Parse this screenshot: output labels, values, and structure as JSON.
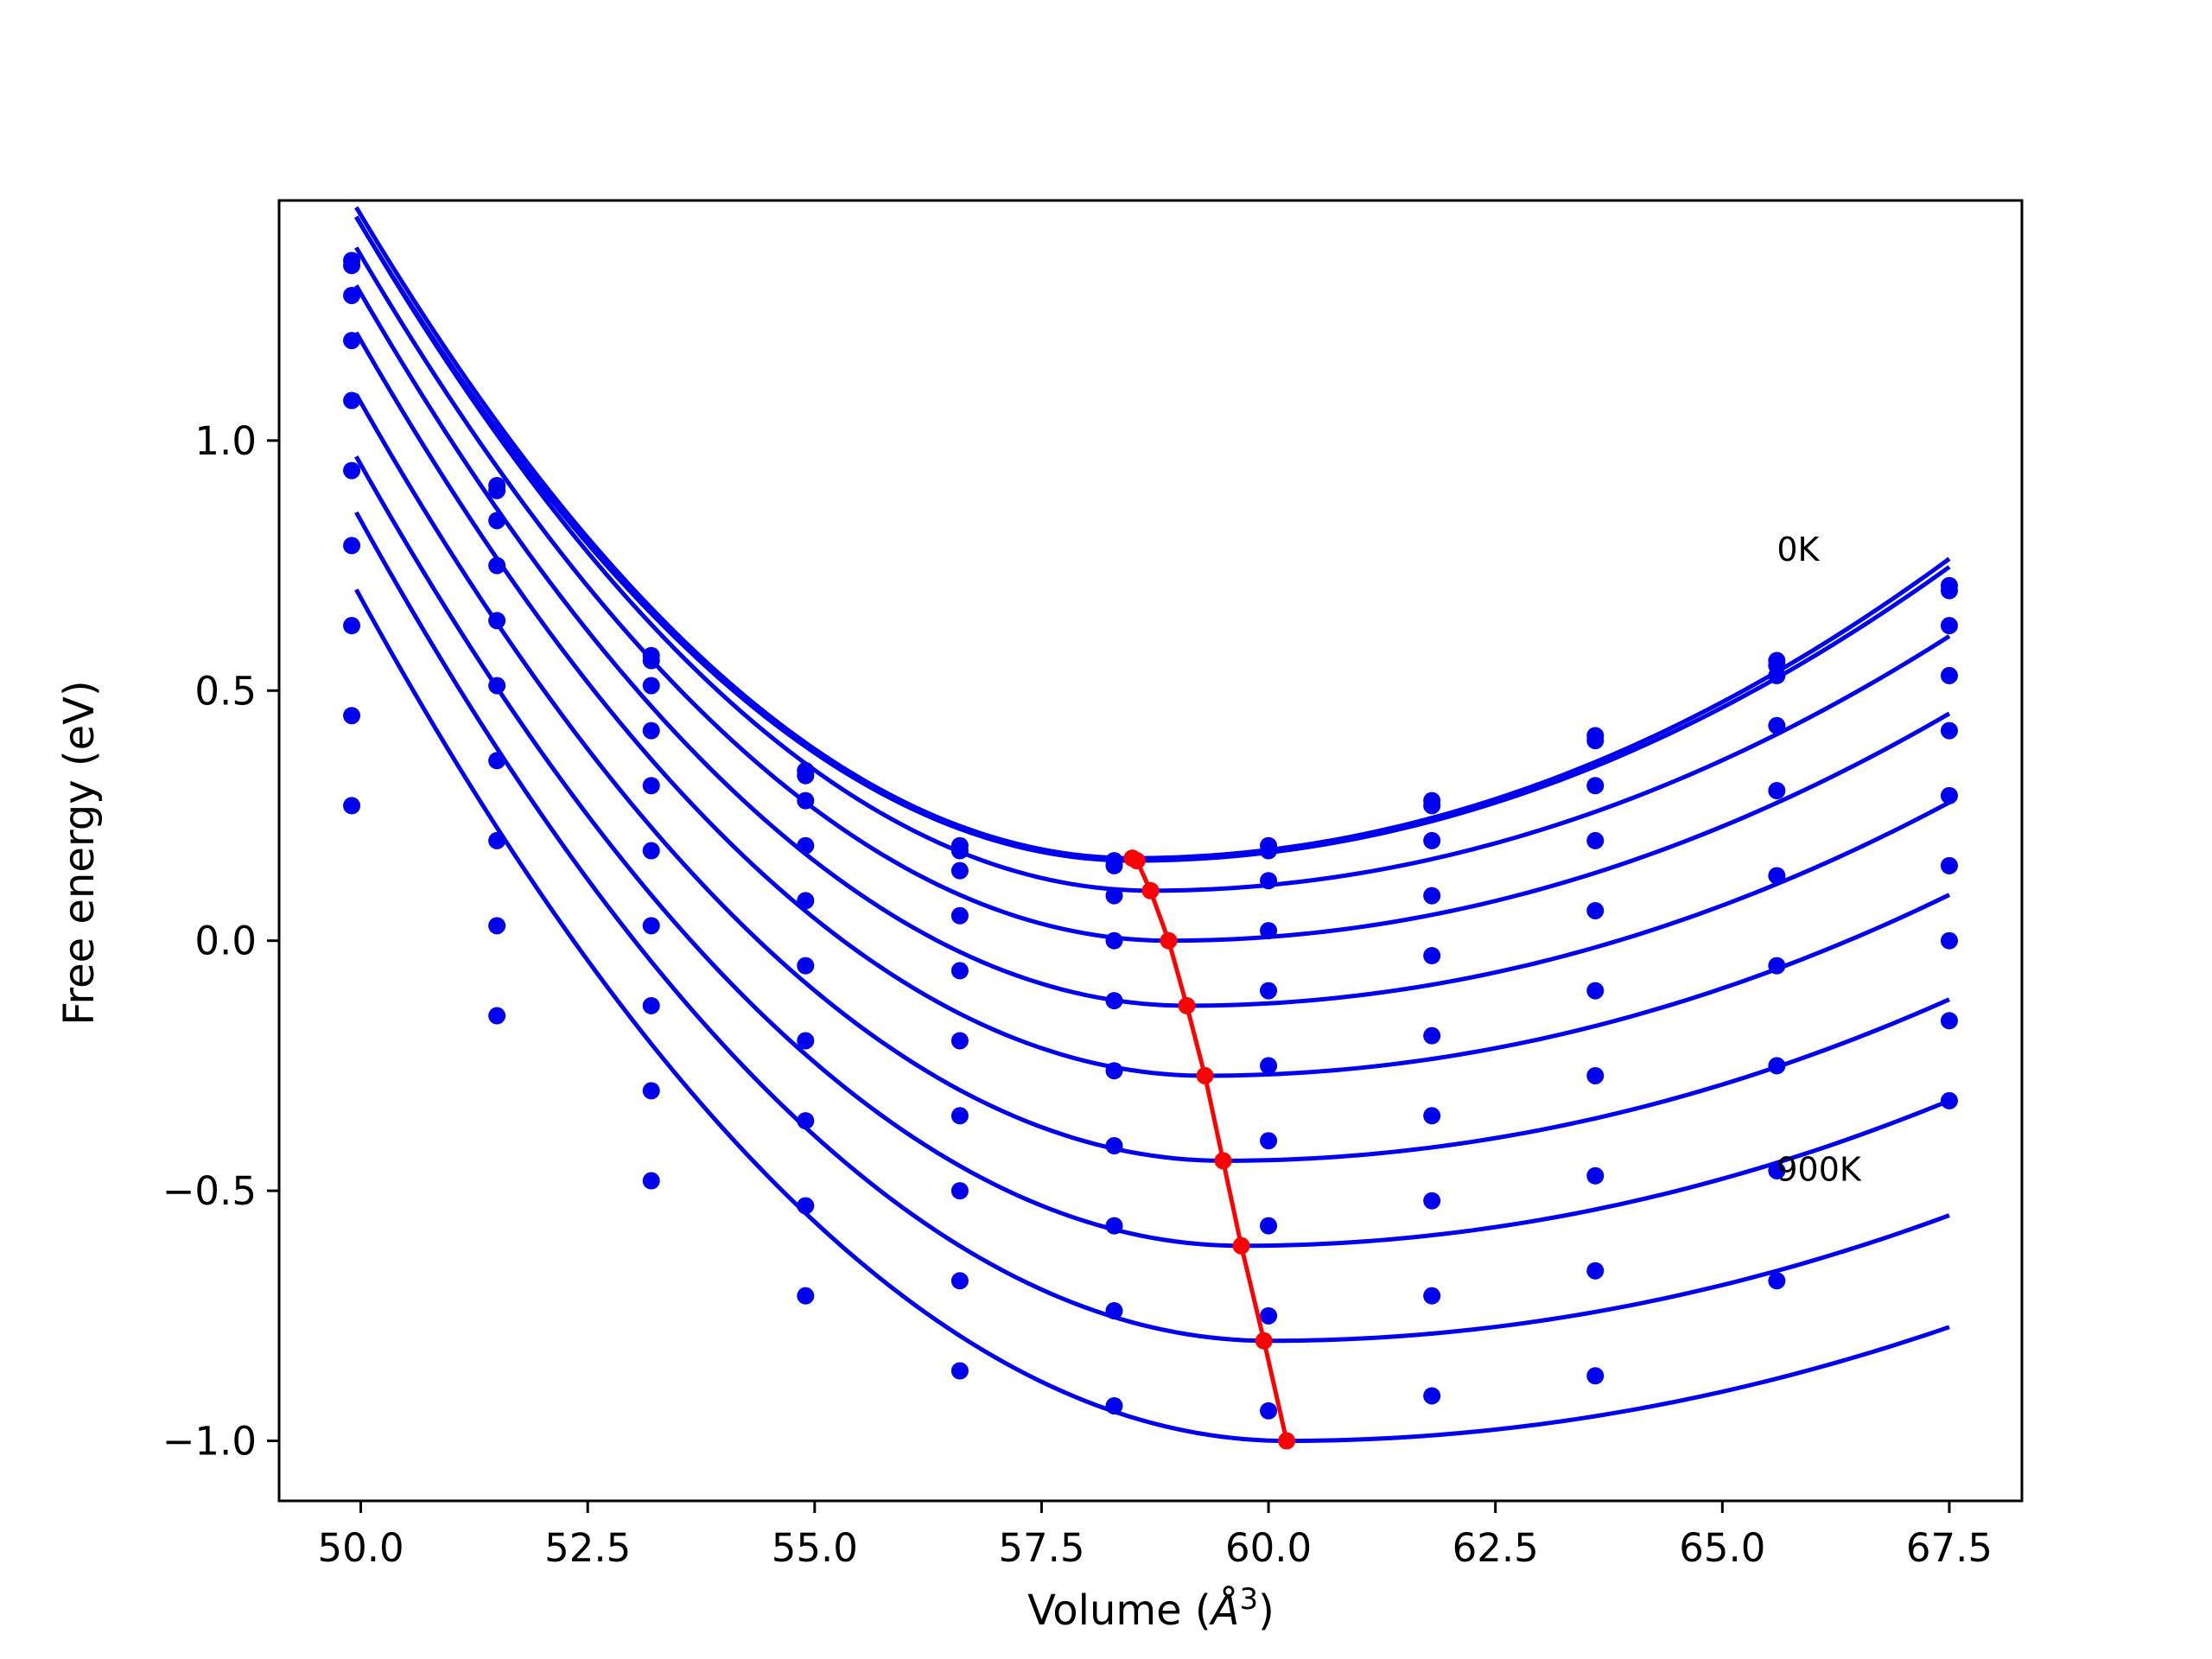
{
  "chart_data": {
    "type": "line",
    "xlabel": "Volume (Å³)",
    "xlabel_parts": {
      "prefix": "Volume (",
      "symbol": "Å",
      "superscript": "3",
      "suffix": ")"
    },
    "ylabel": "Free energy (eV)",
    "xlim": [
      49.1,
      68.3
    ],
    "ylim": [
      -1.12,
      1.48
    ],
    "x_ticks": [
      50.0,
      52.5,
      55.0,
      57.5,
      60.0,
      62.5,
      65.0,
      67.5
    ],
    "x_tick_labels": [
      "50.0",
      "52.5",
      "55.0",
      "57.5",
      "60.0",
      "62.5",
      "65.0",
      "67.5"
    ],
    "y_ticks": [
      -1.0,
      -0.5,
      0.0,
      0.5,
      1.0
    ],
    "y_tick_labels": [
      "−1.0",
      "−0.5",
      "0.0",
      "0.5",
      "1.0"
    ],
    "annotations": [
      {
        "text": "0K",
        "x": 65.6,
        "y": 0.76
      },
      {
        "text": "900K",
        "x": 65.6,
        "y": -0.48
      }
    ],
    "colors": {
      "curves": "#0000ee",
      "points": "#0000ee",
      "minimum_path": "#ff0000",
      "axes": "#000000",
      "background": "#ffffff"
    },
    "sample_volumes": [
      49.9,
      51.5,
      53.2,
      54.9,
      56.6,
      58.3,
      60.0,
      61.8,
      63.6,
      65.6,
      67.5
    ],
    "series": [
      {
        "points_y": [
          1.36,
          0.91,
          0.57,
          0.34,
          0.19,
          0.16,
          0.19,
          0.28,
          0.41,
          0.56,
          0.71
        ],
        "fit": {
          "v0": 58.5,
          "f_min": 0.165,
          "a_left": 0.0178,
          "a_right": 0.00739
        }
      },
      {
        "points_y": [
          1.35,
          0.9,
          0.56,
          0.33,
          0.18,
          0.15,
          0.18,
          0.27,
          0.4,
          0.55,
          0.7
        ],
        "fit": {
          "v0": 58.5,
          "f_min": 0.16,
          "a_left": 0.0176,
          "a_right": 0.00725
        }
      },
      {
        "points_y": [
          1.29,
          0.84,
          0.51,
          0.28,
          0.14,
          0.09,
          0.12,
          0.2,
          0.31,
          0.53,
          0.63
        ],
        "fit": {
          "v0": 58.7,
          "f_min": 0.1,
          "a_left": 0.0176,
          "a_right": 0.00657
        }
      },
      {
        "points_y": [
          1.2,
          0.75,
          0.42,
          0.19,
          0.05,
          0.0,
          0.02,
          0.09,
          0.2,
          0.43,
          0.53
        ],
        "fit": {
          "v0": 58.9,
          "f_min": 0.0,
          "a_left": 0.0173,
          "a_right": 0.00614
        }
      },
      {
        "points_y": [
          1.08,
          0.64,
          0.31,
          0.08,
          -0.06,
          -0.12,
          -0.1,
          -0.03,
          0.06,
          0.3,
          0.42
        ],
        "fit": {
          "v0": 59.1,
          "f_min": -0.13,
          "a_left": 0.0172,
          "a_right": 0.00576
        }
      },
      {
        "points_y": [
          0.94,
          0.51,
          0.18,
          -0.05,
          -0.2,
          -0.26,
          -0.25,
          -0.19,
          -0.1,
          0.13,
          0.29
        ],
        "fit": {
          "v0": 59.3,
          "f_min": -0.27,
          "a_left": 0.017,
          "a_right": 0.00538
        }
      },
      {
        "points_y": [
          0.79,
          0.36,
          0.03,
          -0.2,
          -0.35,
          -0.41,
          -0.4,
          -0.35,
          -0.27,
          -0.05,
          0.15
        ],
        "fit": {
          "v0": 59.5,
          "f_min": -0.44,
          "a_left": 0.0168,
          "a_right": 0.00504
        }
      },
      {
        "points_y": [
          0.63,
          0.2,
          -0.13,
          -0.36,
          -0.5,
          -0.57,
          -0.57,
          -0.52,
          -0.47,
          -0.25,
          0.0
        ],
        "fit": {
          "v0": 59.7,
          "f_min": -0.61,
          "a_left": 0.0166,
          "a_right": 0.00477
        }
      },
      {
        "points_y": [
          0.45,
          0.03,
          -0.3,
          -0.53,
          -0.68,
          -0.74,
          -0.75,
          -0.71,
          -0.66,
          -0.46,
          -0.16
        ],
        "fit": {
          "v0": 60.0,
          "f_min": -0.8,
          "a_left": 0.0164,
          "a_right": 0.00446
        }
      },
      {
        "points_y": [
          0.27,
          -0.15,
          -0.48,
          -0.71,
          -0.86,
          -0.93,
          -0.94,
          -0.91,
          -0.87,
          -0.68,
          -0.32
        ],
        "fit": {
          "v0": 60.2,
          "f_min": -1.0,
          "a_left": 0.0162,
          "a_right": 0.00427
        }
      }
    ],
    "minimum_path": {
      "x": [
        58.5,
        58.55,
        58.7,
        58.9,
        59.1,
        59.3,
        59.5,
        59.7,
        59.95,
        60.2
      ],
      "y": [
        0.165,
        0.16,
        0.1,
        0.0,
        -0.13,
        -0.27,
        -0.44,
        -0.61,
        -0.8,
        -1.0
      ]
    }
  }
}
